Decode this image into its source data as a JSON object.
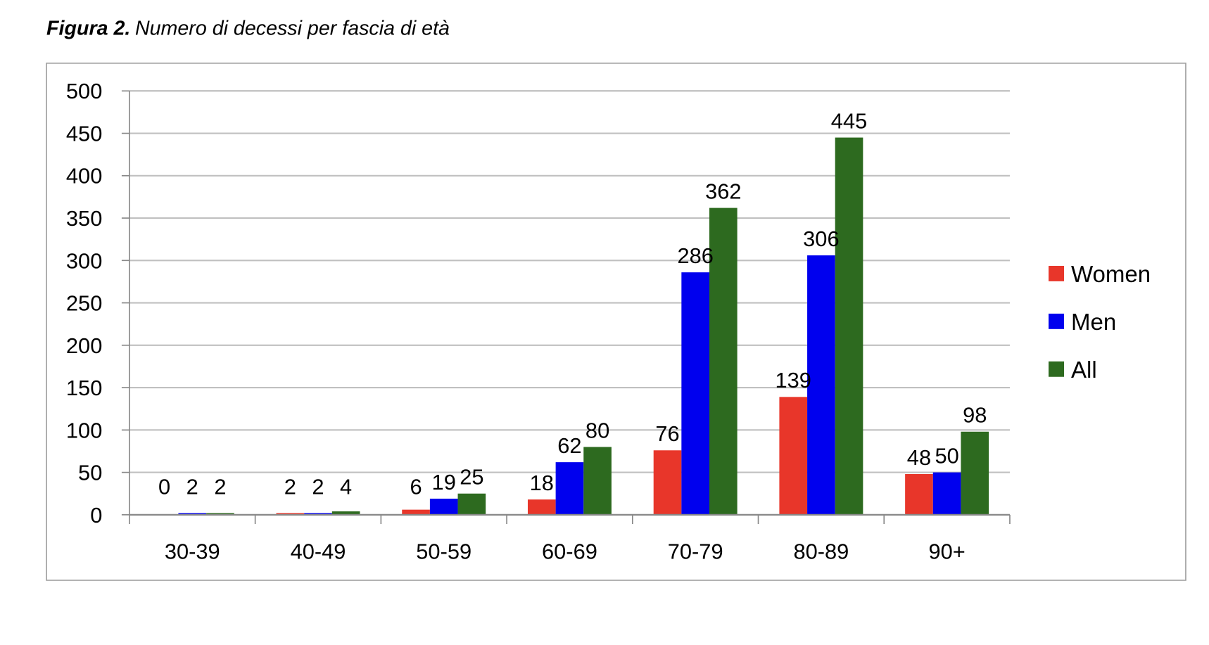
{
  "chart_data": {
    "type": "bar",
    "title_prefix": "Figura 2.",
    "title": "Numero di decessi per fascia di età",
    "xlabel": "",
    "ylabel": "",
    "ylim": [
      0,
      500
    ],
    "yticks": [
      0,
      50,
      100,
      150,
      200,
      250,
      300,
      350,
      400,
      450,
      500
    ],
    "grid": true,
    "legend_position": "right",
    "categories": [
      "30-39",
      "40-49",
      "50-59",
      "60-69",
      "70-79",
      "80-89",
      "90+"
    ],
    "series": [
      {
        "name": "Women",
        "color": "#e8362a",
        "values": [
          0,
          2,
          6,
          18,
          76,
          139,
          48
        ]
      },
      {
        "name": "Men",
        "color": "#0000ee",
        "values": [
          2,
          2,
          19,
          62,
          286,
          306,
          50
        ]
      },
      {
        "name": "All",
        "color": "#2d6a1f",
        "values": [
          2,
          4,
          25,
          80,
          362,
          445,
          98
        ]
      }
    ]
  }
}
